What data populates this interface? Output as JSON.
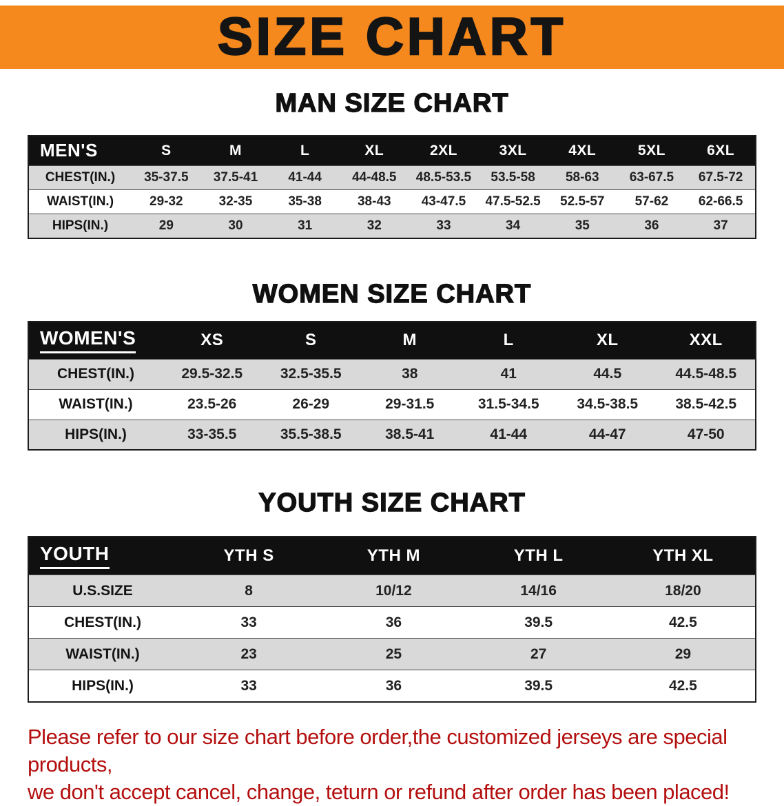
{
  "banner": {
    "title": "SIZE CHART"
  },
  "sections": [
    {
      "heading": "MAN SIZE CHART",
      "table": {
        "header": [
          "MEN'S",
          "S",
          "M",
          "L",
          "XL",
          "2XL",
          "3XL",
          "4XL",
          "5XL",
          "6XL"
        ],
        "rows": [
          [
            "CHEST(IN.)",
            "35-37.5",
            "37.5-41",
            "41-44",
            "44-48.5",
            "48.5-53.5",
            "53.5-58",
            "58-63",
            "63-67.5",
            "67.5-72"
          ],
          [
            "WAIST(IN.)",
            "29-32",
            "32-35",
            "35-38",
            "38-43",
            "43-47.5",
            "47.5-52.5",
            "52.5-57",
            "57-62",
            "62-66.5"
          ],
          [
            "HIPS(IN.)",
            "29",
            "30",
            "31",
            "32",
            "33",
            "34",
            "35",
            "36",
            "37"
          ]
        ]
      }
    },
    {
      "heading": "WOMEN SIZE CHART",
      "table": {
        "header": [
          "WOMEN'S",
          "XS",
          "S",
          "M",
          "L",
          "XL",
          "XXL"
        ],
        "rows": [
          [
            "CHEST(IN.)",
            "29.5-32.5",
            "32.5-35.5",
            "38",
            "41",
            "44.5",
            "44.5-48.5"
          ],
          [
            "WAIST(IN.)",
            "23.5-26",
            "26-29",
            "29-31.5",
            "31.5-34.5",
            "34.5-38.5",
            "38.5-42.5"
          ],
          [
            "HIPS(IN.)",
            "33-35.5",
            "35.5-38.5",
            "38.5-41",
            "41-44",
            "44-47",
            "47-50"
          ]
        ]
      }
    },
    {
      "heading": "YOUTH SIZE CHART",
      "table": {
        "header": [
          "YOUTH",
          "YTH S",
          "YTH M",
          "YTH L",
          "YTH XL"
        ],
        "rows": [
          [
            "U.S.SIZE",
            "8",
            "10/12",
            "14/16",
            "18/20"
          ],
          [
            "CHEST(IN.)",
            "33",
            "36",
            "39.5",
            "42.5"
          ],
          [
            "WAIST(IN.)",
            "23",
            "25",
            "27",
            "29"
          ],
          [
            "HIPS(IN.)",
            "33",
            "36",
            "39.5",
            "42.5"
          ]
        ]
      }
    }
  ],
  "footer": {
    "line1": "Please refer to our size chart before order,the customized jerseys are special products,",
    "line2": "we don't accept cancel, change, teturn or refund after order has been placed!"
  },
  "colors": {
    "banner_bg": "#F6891E",
    "header_bg": "#101010",
    "stripe_gray": "#D9D9D9",
    "table_border": "#1C1C1C",
    "footer_red": "#B40F0F"
  }
}
